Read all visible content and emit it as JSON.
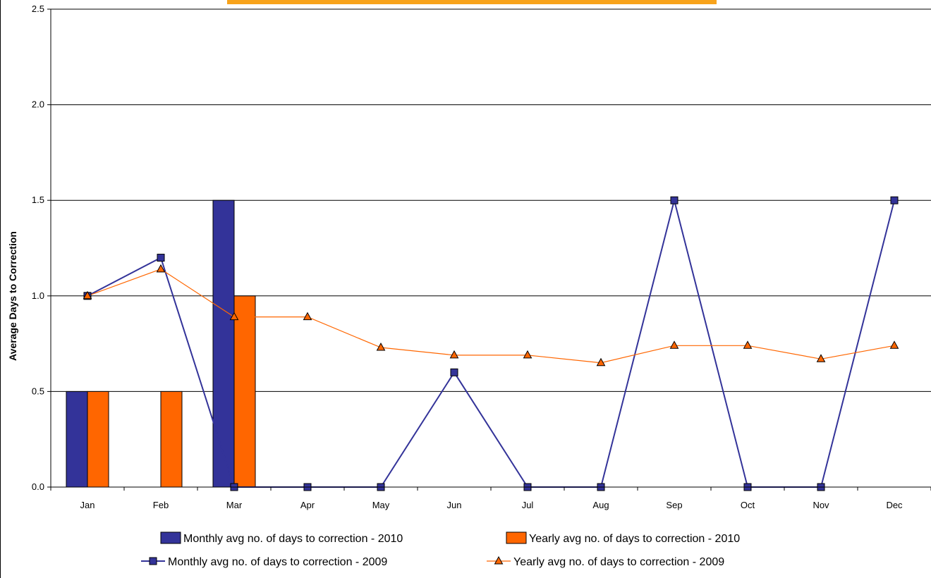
{
  "chart_data": {
    "type": "bar",
    "title": "",
    "xlabel": "",
    "ylabel": "Average Days to Correction",
    "ylim": [
      0,
      2.5
    ],
    "yticks": [
      "0.0",
      "0.5",
      "1.0",
      "1.5",
      "2.0",
      "2.5"
    ],
    "ytick_values": [
      0,
      0.5,
      1.0,
      1.5,
      2.0,
      2.5
    ],
    "grid": true,
    "legend_position": "bottom",
    "categories": [
      "Jan",
      "Feb",
      "Mar",
      "Apr",
      "May",
      "Jun",
      "Jul",
      "Aug",
      "Sep",
      "Oct",
      "Nov",
      "Dec"
    ],
    "series": [
      {
        "name": "Monthly avg no. of days to correction - 2010",
        "kind": "bar",
        "color": "#333399",
        "values": [
          0.5,
          null,
          1.5,
          null,
          null,
          null,
          null,
          null,
          null,
          null,
          null,
          null
        ]
      },
      {
        "name": "Yearly avg no. of days to correction - 2010",
        "kind": "bar",
        "color": "#FF6600",
        "values": [
          0.5,
          0.5,
          1.0,
          null,
          null,
          null,
          null,
          null,
          null,
          null,
          null,
          null
        ]
      },
      {
        "name": "Monthly avg no. of days to correction - 2009",
        "kind": "line",
        "marker": "square",
        "color": "#333399",
        "values": [
          1.0,
          1.2,
          0.0,
          0.0,
          0.0,
          0.6,
          0.0,
          0.0,
          1.5,
          0.0,
          0.0,
          1.5
        ]
      },
      {
        "name": "Yearly avg no. of days to correction - 2009",
        "kind": "line",
        "marker": "triangle",
        "color": "#FF6600",
        "values": [
          1.0,
          1.14,
          0.89,
          0.89,
          0.73,
          0.69,
          0.69,
          0.65,
          0.74,
          0.74,
          0.67,
          0.74
        ]
      }
    ]
  }
}
